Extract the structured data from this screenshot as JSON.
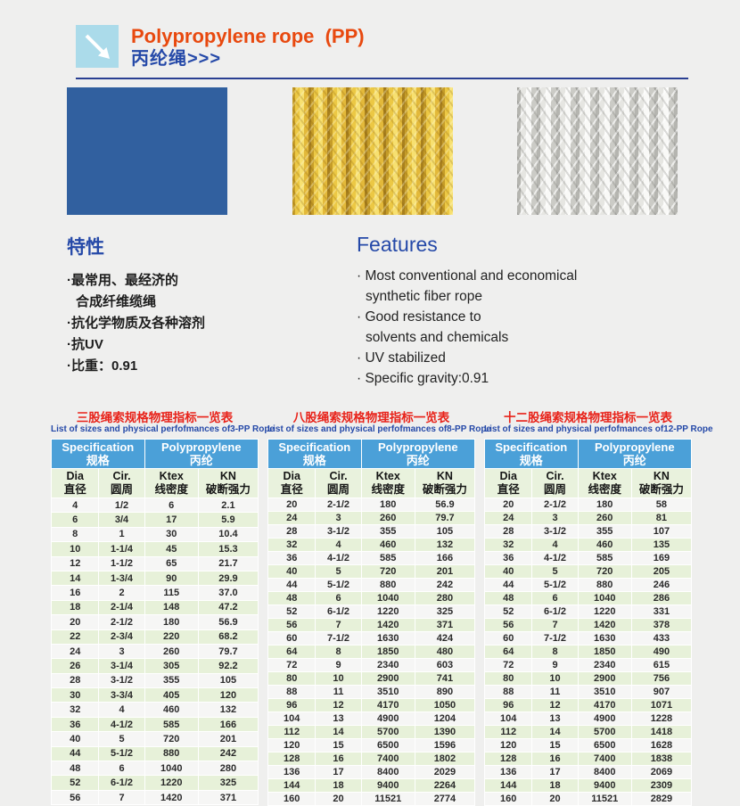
{
  "header": {
    "title_en": "Polypropylene rope  (PP)",
    "title_zh": "丙纶绳>>>"
  },
  "images": [
    {
      "name": "blue-pp-rope-coil"
    },
    {
      "name": "yellow-pp-rope"
    },
    {
      "name": "white-pp-rope"
    }
  ],
  "features_zh": {
    "title": "特性",
    "lines": [
      "·最常用、最经济的",
      "合成纤维缆绳",
      "·抗化学物质及各种溶剂",
      "·抗UV",
      "·比重：0.91"
    ]
  },
  "features_en": {
    "title": "Features",
    "lines": [
      "· Most conventional and economical",
      "synthetic fiber rope",
      "· Good resistance to",
      "solvents and chemicals",
      "· UV stabilized",
      "· Specific gravity:0.91"
    ]
  },
  "table_header": {
    "spec_en": "Specification",
    "spec_zh": "规格",
    "poly_en": "Polypropylene",
    "poly_zh": "丙纶",
    "dia_en": "Dia",
    "dia_zh": "直径",
    "cir_en": "Cir.",
    "cir_zh": "圆周",
    "ktex_en": "Ktex",
    "ktex_zh": "线密度",
    "kn_en": "KN",
    "kn_zh": "破断强力"
  },
  "tables": [
    {
      "title": "三股绳索规格物理指标一览表",
      "subtitle": "List of sizes and physical perfofmances of3-PP Rope",
      "rows": [
        [
          "4",
          "1/2",
          "6",
          "2.1"
        ],
        [
          "6",
          "3/4",
          "17",
          "5.9"
        ],
        [
          "8",
          "1",
          "30",
          "10.4"
        ],
        [
          "10",
          "1-1/4",
          "45",
          "15.3"
        ],
        [
          "12",
          "1-1/2",
          "65",
          "21.7"
        ],
        [
          "14",
          "1-3/4",
          "90",
          "29.9"
        ],
        [
          "16",
          "2",
          "115",
          "37.0"
        ],
        [
          "18",
          "2-1/4",
          "148",
          "47.2"
        ],
        [
          "20",
          "2-1/2",
          "180",
          "56.9"
        ],
        [
          "22",
          "2-3/4",
          "220",
          "68.2"
        ],
        [
          "24",
          "3",
          "260",
          "79.7"
        ],
        [
          "26",
          "3-1/4",
          "305",
          "92.2"
        ],
        [
          "28",
          "3-1/2",
          "355",
          "105"
        ],
        [
          "30",
          "3-3/4",
          "405",
          "120"
        ],
        [
          "32",
          "4",
          "460",
          "132"
        ],
        [
          "36",
          "4-1/2",
          "585",
          "166"
        ],
        [
          "40",
          "5",
          "720",
          "201"
        ],
        [
          "44",
          "5-1/2",
          "880",
          "242"
        ],
        [
          "48",
          "6",
          "1040",
          "280"
        ],
        [
          "52",
          "6-1/2",
          "1220",
          "325"
        ],
        [
          "56",
          "7",
          "1420",
          "371"
        ]
      ]
    },
    {
      "title": "八股绳索规格物理指标一览表",
      "subtitle": "List of sizes and physical perfofmances of8-PP Rope",
      "rows": [
        [
          "20",
          "2-1/2",
          "180",
          "56.9"
        ],
        [
          "24",
          "3",
          "260",
          "79.7"
        ],
        [
          "28",
          "3-1/2",
          "355",
          "105"
        ],
        [
          "32",
          "4",
          "460",
          "132"
        ],
        [
          "36",
          "4-1/2",
          "585",
          "166"
        ],
        [
          "40",
          "5",
          "720",
          "201"
        ],
        [
          "44",
          "5-1/2",
          "880",
          "242"
        ],
        [
          "48",
          "6",
          "1040",
          "280"
        ],
        [
          "52",
          "6-1/2",
          "1220",
          "325"
        ],
        [
          "56",
          "7",
          "1420",
          "371"
        ],
        [
          "60",
          "7-1/2",
          "1630",
          "424"
        ],
        [
          "64",
          "8",
          "1850",
          "480"
        ],
        [
          "72",
          "9",
          "2340",
          "603"
        ],
        [
          "80",
          "10",
          "2900",
          "741"
        ],
        [
          "88",
          "11",
          "3510",
          "890"
        ],
        [
          "96",
          "12",
          "4170",
          "1050"
        ],
        [
          "104",
          "13",
          "4900",
          "1204"
        ],
        [
          "112",
          "14",
          "5700",
          "1390"
        ],
        [
          "120",
          "15",
          "6500",
          "1596"
        ],
        [
          "128",
          "16",
          "7400",
          "1802"
        ],
        [
          "136",
          "17",
          "8400",
          "2029"
        ],
        [
          "144",
          "18",
          "9400",
          "2264"
        ],
        [
          "160",
          "20",
          "11521",
          "2774"
        ]
      ]
    },
    {
      "title": "十二股绳索规格物理指标一览表",
      "subtitle": "List of sizes and physical perfofmances of12-PP Rope",
      "rows": [
        [
          "20",
          "2-1/2",
          "180",
          "58"
        ],
        [
          "24",
          "3",
          "260",
          "81"
        ],
        [
          "28",
          "3-1/2",
          "355",
          "107"
        ],
        [
          "32",
          "4",
          "460",
          "135"
        ],
        [
          "36",
          "4-1/2",
          "585",
          "169"
        ],
        [
          "40",
          "5",
          "720",
          "205"
        ],
        [
          "44",
          "5-1/2",
          "880",
          "246"
        ],
        [
          "48",
          "6",
          "1040",
          "286"
        ],
        [
          "52",
          "6-1/2",
          "1220",
          "331"
        ],
        [
          "56",
          "7",
          "1420",
          "378"
        ],
        [
          "60",
          "7-1/2",
          "1630",
          "433"
        ],
        [
          "64",
          "8",
          "1850",
          "490"
        ],
        [
          "72",
          "9",
          "2340",
          "615"
        ],
        [
          "80",
          "10",
          "2900",
          "756"
        ],
        [
          "88",
          "11",
          "3510",
          "907"
        ],
        [
          "96",
          "12",
          "4170",
          "1071"
        ],
        [
          "104",
          "13",
          "4900",
          "1228"
        ],
        [
          "112",
          "14",
          "5700",
          "1418"
        ],
        [
          "120",
          "15",
          "6500",
          "1628"
        ],
        [
          "128",
          "16",
          "7400",
          "1838"
        ],
        [
          "136",
          "17",
          "8400",
          "2069"
        ],
        [
          "144",
          "18",
          "9400",
          "2309"
        ],
        [
          "160",
          "20",
          "11521",
          "2829"
        ]
      ]
    }
  ],
  "colors": {
    "accent_orange": "#e8490f",
    "accent_blue": "#2549a8",
    "rule_blue": "#2a3f92",
    "table_title_red": "#e8231a",
    "table_head_blue": "#4ba0d8",
    "table_subhead_green": "#e9f2dd",
    "row_stripe_green": "#e7f1d9",
    "row_stripe_white": "#f6f6f5",
    "icon_bg_blue": "#abdbea"
  }
}
